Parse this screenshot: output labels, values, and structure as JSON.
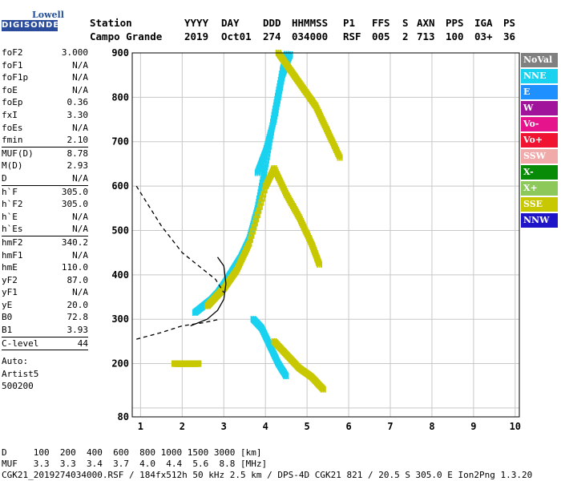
{
  "logo": {
    "top": "Lowell",
    "bottom": "DIGISONDE"
  },
  "header": {
    "labels": [
      "Station",
      "YYYY",
      "DAY",
      "DDD",
      "HHMMSS",
      "P1",
      "FFS",
      "S",
      "AXN",
      "PPS",
      "IGA",
      "PS"
    ],
    "values": [
      "Campo Grande",
      "2019",
      "Oct01",
      "274",
      "034000",
      "RSF",
      "005",
      "2",
      "713",
      "100",
      "03+",
      "36"
    ]
  },
  "params": [
    {
      "k": "foF2",
      "v": "3.000"
    },
    {
      "k": "foF1",
      "v": "N/A"
    },
    {
      "k": "foF1p",
      "v": "N/A"
    },
    {
      "k": "foE",
      "v": "N/A"
    },
    {
      "k": "foEp",
      "v": "0.36"
    },
    {
      "k": "fxI",
      "v": "3.30"
    },
    {
      "k": "foEs",
      "v": "N/A"
    },
    {
      "k": "fmin",
      "v": "2.10"
    },
    {
      "k": "MUF(D)",
      "v": "8.78"
    },
    {
      "k": "M(D)",
      "v": "2.93"
    },
    {
      "k": "D",
      "v": "N/A"
    },
    {
      "k": "h`F",
      "v": "305.0"
    },
    {
      "k": "h`F2",
      "v": "305.0"
    },
    {
      "k": "h`E",
      "v": "N/A"
    },
    {
      "k": "h`Es",
      "v": "N/A"
    },
    {
      "k": "hmF2",
      "v": "340.2"
    },
    {
      "k": "hmF1",
      "v": "N/A"
    },
    {
      "k": "hmE",
      "v": "110.0"
    },
    {
      "k": "yF2",
      "v": "87.0"
    },
    {
      "k": "yF1",
      "v": "N/A"
    },
    {
      "k": "yE",
      "v": "20.0"
    },
    {
      "k": "B0",
      "v": "72.8"
    },
    {
      "k": "B1",
      "v": "3.93"
    },
    {
      "k": "C-level",
      "v": "44"
    }
  ],
  "extra": [
    "Auto:",
    "Artist5",
    "500200"
  ],
  "legend": [
    {
      "label": "NoVal",
      "color": "#808080"
    },
    {
      "label": "NNE",
      "color": "#19d2f0"
    },
    {
      "label": "E",
      "color": "#1e90ff"
    },
    {
      "label": "W",
      "color": "#a0139a"
    },
    {
      "label": "Vo-",
      "color": "#e6148c"
    },
    {
      "label": "Vo+",
      "color": "#f01432"
    },
    {
      "label": "SSW",
      "color": "#f0aaaa"
    },
    {
      "label": "X-",
      "color": "#088c08"
    },
    {
      "label": "X+",
      "color": "#8cc85a"
    },
    {
      "label": "SSE",
      "color": "#c8c800"
    },
    {
      "label": "NNW",
      "color": "#1e14c8"
    }
  ],
  "footer": {
    "line1": "D     100  200  400  600  800 1000 1500 3000 [km]",
    "line2": "MUF   3.3  3.3  3.4  3.7  4.0  4.4  5.6  8.8 [MHz]",
    "line3": "CGK21_2019274034000.RSF / 184fx512h 50 kHz 2.5 km / DPS-4D CGK21 821 / 20.5 S 305.0 E Ion2Png 1.3.20"
  },
  "chart_data": {
    "type": "scatter",
    "xlim": [
      0.8,
      10.1
    ],
    "ylim": [
      80,
      900
    ],
    "x_ticks": [
      1,
      2,
      3,
      4,
      5,
      6,
      7,
      8,
      9,
      10
    ],
    "y_ticks": [
      80,
      100,
      200,
      300,
      400,
      500,
      600,
      700,
      800,
      900
    ],
    "y_tick_labels": [
      "80",
      "",
      "200",
      "300",
      "400",
      "500",
      "600",
      "700",
      "800",
      "900"
    ],
    "grid": true,
    "traces": [
      {
        "name": "F-trace O (NNE/E)",
        "color": "#19d2f0",
        "points": [
          [
            2.3,
            315
          ],
          [
            2.5,
            330
          ],
          [
            2.7,
            345
          ],
          [
            2.85,
            360
          ],
          [
            3.0,
            380
          ],
          [
            3.2,
            410
          ],
          [
            3.4,
            440
          ],
          [
            3.6,
            480
          ],
          [
            3.8,
            550
          ],
          [
            4.0,
            650
          ],
          [
            4.2,
            760
          ],
          [
            4.4,
            860
          ],
          [
            4.5,
            900
          ]
        ]
      },
      {
        "name": "F-trace X (SSE)",
        "color": "#c8c800",
        "points": [
          [
            2.6,
            330
          ],
          [
            2.8,
            350
          ],
          [
            3.0,
            370
          ],
          [
            3.3,
            410
          ],
          [
            3.6,
            470
          ],
          [
            4.0,
            600
          ],
          [
            4.2,
            640
          ],
          [
            4.5,
            580
          ],
          [
            4.8,
            530
          ],
          [
            5.1,
            470
          ],
          [
            5.3,
            420
          ]
        ]
      },
      {
        "name": "2F O (NNE)",
        "color": "#19d2f0",
        "points": [
          [
            3.8,
            630
          ],
          [
            4.0,
            680
          ],
          [
            4.2,
            750
          ],
          [
            4.4,
            850
          ],
          [
            4.6,
            900
          ]
        ]
      },
      {
        "name": "2F X (SSE)",
        "color": "#c8c800",
        "points": [
          [
            4.3,
            900
          ],
          [
            4.6,
            860
          ],
          [
            4.9,
            820
          ],
          [
            5.2,
            780
          ],
          [
            5.5,
            720
          ],
          [
            5.8,
            660
          ]
        ]
      },
      {
        "name": "Lower O (NNE)",
        "color": "#19d2f0",
        "points": [
          [
            3.7,
            300
          ],
          [
            3.9,
            280
          ],
          [
            4.1,
            240
          ],
          [
            4.3,
            200
          ],
          [
            4.5,
            170
          ]
        ]
      },
      {
        "name": "Lower X (SSE)",
        "color": "#c8c800",
        "points": [
          [
            4.2,
            250
          ],
          [
            4.5,
            220
          ],
          [
            4.8,
            190
          ],
          [
            5.1,
            170
          ],
          [
            5.4,
            140
          ]
        ]
      },
      {
        "name": "Es trace",
        "color": "#c8c800",
        "points": [
          [
            1.8,
            200
          ],
          [
            2.0,
            200
          ],
          [
            2.2,
            200
          ],
          [
            2.4,
            200
          ]
        ]
      }
    ],
    "model_profile": [
      [
        0.9,
        600
      ],
      [
        1.5,
        510
      ],
      [
        2.0,
        450
      ],
      [
        2.4,
        420
      ],
      [
        2.8,
        390
      ],
      [
        3.0,
        360
      ]
    ],
    "model_profile_lower": [
      [
        0.9,
        255
      ],
      [
        1.5,
        270
      ],
      [
        2.0,
        285
      ],
      [
        2.5,
        292
      ],
      [
        2.9,
        300
      ]
    ],
    "fit_curve": [
      [
        2.2,
        285
      ],
      [
        2.6,
        300
      ],
      [
        2.85,
        320
      ],
      [
        3.0,
        345
      ],
      [
        3.05,
        380
      ],
      [
        3.0,
        420
      ],
      [
        2.85,
        440
      ]
    ]
  }
}
